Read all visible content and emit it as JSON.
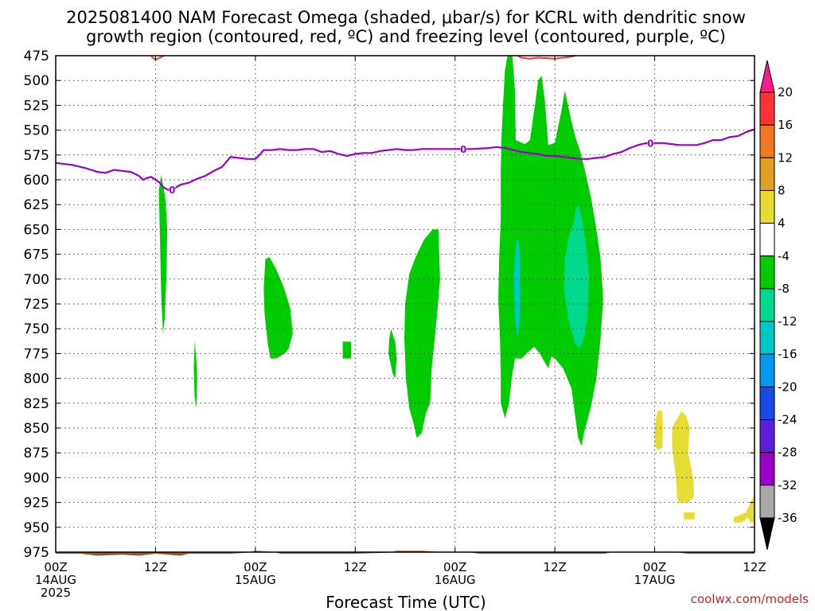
{
  "title_line1": "2025081400 NAM Forecast Omega (shaded, μbar/s) for KCRL with dendritic snow",
  "title_line2": "growth region (contoured, red, ºC) and freezing level (contoured, purple, ºC)",
  "xlabel": "Forecast Time (UTC)",
  "credit": "coolwx.com/models",
  "colors": {
    "green": "#00cc00",
    "teal": "#00d88c",
    "cyan": "#00c8c8",
    "yellow": "#e6dc32",
    "freezing_line": "#9b00c8",
    "dgz_line": "#ff3030",
    "ground": "#a0522d"
  },
  "chart_data": {
    "type": "heatmap",
    "y_axis": {
      "label": "",
      "range": [
        975,
        475
      ],
      "inverted": true,
      "ticks": [
        "475",
        "500",
        "525",
        "550",
        "575",
        "600",
        "625",
        "650",
        "675",
        "700",
        "725",
        "750",
        "775",
        "800",
        "825",
        "850",
        "875",
        "900",
        "925",
        "950",
        "975"
      ]
    },
    "x_axis": {
      "label": "Forecast Time (UTC)",
      "range_hours": [
        0,
        84
      ],
      "ticks": [
        {
          "hour": 0,
          "line1": "00Z",
          "line2": "14AUG",
          "line3": "2025"
        },
        {
          "hour": 12,
          "line1": "12Z",
          "line2": "",
          "line3": ""
        },
        {
          "hour": 24,
          "line1": "00Z",
          "line2": "15AUG",
          "line3": ""
        },
        {
          "hour": 36,
          "line1": "12Z",
          "line2": "",
          "line3": ""
        },
        {
          "hour": 48,
          "line1": "00Z",
          "line2": "16AUG",
          "line3": ""
        },
        {
          "hour": 60,
          "line1": "12Z",
          "line2": "",
          "line3": ""
        },
        {
          "hour": 72,
          "line1": "00Z",
          "line2": "17AUG",
          "line3": ""
        },
        {
          "hour": 84,
          "line1": "12Z",
          "line2": "",
          "line3": ""
        }
      ]
    },
    "grid": true,
    "colorbar": {
      "levels": [
        "20",
        "16",
        "12",
        "8",
        "4",
        "-4",
        "-8",
        "-12",
        "-16",
        "-20",
        "-24",
        "-28",
        "-32",
        "-36"
      ],
      "colors": [
        "#ff1a8c",
        "#ff3333",
        "#f07820",
        "#e0a020",
        "#e6dc32",
        "#ffffff",
        "#00cc00",
        "#00d88c",
        "#00c8c8",
        "#0099ee",
        "#1a4ae6",
        "#5a20d8",
        "#9b00c8",
        "#a8a8a8",
        "#000000"
      ]
    },
    "freezing_level": {
      "label": "0",
      "points": [
        [
          0,
          583
        ],
        [
          2,
          585
        ],
        [
          3.5,
          588
        ],
        [
          5,
          592
        ],
        [
          6,
          593
        ],
        [
          7,
          590
        ],
        [
          8,
          591
        ],
        [
          9,
          592
        ],
        [
          10,
          596
        ],
        [
          10.5,
          600
        ],
        [
          11,
          598
        ],
        [
          11.5,
          597
        ],
        [
          12,
          600
        ],
        [
          12.5,
          603
        ],
        [
          13,
          608
        ],
        [
          13.5,
          610
        ],
        [
          14,
          610
        ],
        [
          15,
          605
        ],
        [
          16,
          603
        ],
        [
          17,
          599
        ],
        [
          18,
          596
        ],
        [
          19,
          591
        ],
        [
          20,
          587
        ],
        [
          21,
          577
        ],
        [
          22,
          578
        ],
        [
          23,
          579
        ],
        [
          24,
          579
        ],
        [
          24.5,
          575
        ],
        [
          25,
          570
        ],
        [
          26,
          570
        ],
        [
          27,
          569
        ],
        [
          28,
          570
        ],
        [
          29,
          570
        ],
        [
          30,
          569
        ],
        [
          31,
          569
        ],
        [
          32,
          572
        ],
        [
          33,
          571
        ],
        [
          34,
          574
        ],
        [
          35,
          576
        ],
        [
          36,
          574
        ],
        [
          37,
          573
        ],
        [
          38,
          573
        ],
        [
          39,
          571
        ],
        [
          40,
          570
        ],
        [
          41,
          569
        ],
        [
          42,
          570
        ],
        [
          43,
          570
        ],
        [
          44,
          569
        ],
        [
          45,
          569
        ],
        [
          46,
          569
        ],
        [
          48,
          569
        ],
        [
          50,
          569
        ],
        [
          52,
          568
        ],
        [
          53,
          567
        ],
        [
          54,
          568
        ],
        [
          55,
          570
        ],
        [
          56,
          572
        ],
        [
          57,
          573
        ],
        [
          58,
          574
        ],
        [
          59,
          576
        ],
        [
          60,
          576
        ],
        [
          61,
          577
        ],
        [
          62,
          578
        ],
        [
          63,
          579
        ],
        [
          64,
          579
        ],
        [
          65,
          578
        ],
        [
          66,
          577
        ],
        [
          67,
          574
        ],
        [
          68,
          572
        ],
        [
          69,
          568
        ],
        [
          70,
          565
        ],
        [
          71,
          563
        ],
        [
          72,
          563
        ],
        [
          73,
          563
        ],
        [
          74,
          564
        ],
        [
          75,
          565
        ],
        [
          76,
          565
        ],
        [
          77,
          565
        ],
        [
          78,
          563
        ],
        [
          79,
          560
        ],
        [
          80,
          560
        ],
        [
          81,
          557
        ],
        [
          82,
          556
        ],
        [
          83,
          552
        ],
        [
          84,
          549
        ]
      ],
      "labels_at_hours": [
        14,
        49,
        71.5
      ]
    },
    "dgz_contours": [
      [
        [
          11.5,
          476
        ],
        [
          12,
          479
        ],
        [
          12.5,
          477
        ],
        [
          13,
          475
        ]
      ],
      [
        [
          55.5,
          475
        ],
        [
          56,
          477
        ],
        [
          57,
          478
        ],
        [
          58,
          477
        ],
        [
          60,
          478
        ],
        [
          61,
          477
        ],
        [
          62,
          476
        ],
        [
          62.5,
          475
        ]
      ]
    ],
    "green_regions": [
      [
        [
          12.7,
          595
        ],
        [
          13.2,
          620
        ],
        [
          13.4,
          650
        ],
        [
          13.3,
          700
        ],
        [
          13.1,
          740
        ],
        [
          12.9,
          755
        ],
        [
          12.7,
          720
        ],
        [
          12.5,
          650
        ],
        [
          12.4,
          610
        ]
      ],
      [
        [
          16.7,
          763
        ],
        [
          16.9,
          780
        ],
        [
          17.0,
          800
        ],
        [
          16.9,
          830
        ],
        [
          16.7,
          820
        ],
        [
          16.6,
          790
        ]
      ],
      [
        [
          25.2,
          680
        ],
        [
          25.7,
          678
        ],
        [
          26.5,
          690
        ],
        [
          27.5,
          710
        ],
        [
          28.2,
          730
        ],
        [
          28.5,
          755
        ],
        [
          28.0,
          770
        ],
        [
          27.5,
          775
        ],
        [
          26.5,
          780
        ],
        [
          25.8,
          780
        ],
        [
          25.5,
          765
        ],
        [
          25.1,
          735
        ],
        [
          25.0,
          710
        ]
      ],
      [
        [
          34.5,
          763
        ],
        [
          35.5,
          763
        ],
        [
          35.5,
          780
        ],
        [
          34.5,
          780
        ]
      ],
      [
        [
          40.3,
          750
        ],
        [
          40.8,
          763
        ],
        [
          41.0,
          780
        ],
        [
          40.8,
          800
        ],
        [
          40.5,
          795
        ],
        [
          40.0,
          775
        ],
        [
          40.1,
          760
        ]
      ],
      [
        [
          45.3,
          650
        ],
        [
          46.0,
          650
        ],
        [
          46.2,
          700
        ],
        [
          45.8,
          740
        ],
        [
          45.2,
          790
        ],
        [
          45.0,
          825
        ],
        [
          44.5,
          835
        ],
        [
          44.0,
          855
        ],
        [
          43.4,
          860
        ],
        [
          43.0,
          845
        ],
        [
          42.5,
          830
        ],
        [
          42.1,
          800
        ],
        [
          41.9,
          760
        ],
        [
          42.0,
          725
        ],
        [
          42.5,
          695
        ],
        [
          43.3,
          677
        ],
        [
          44.3,
          660
        ]
      ],
      [
        [
          54.3,
          475
        ],
        [
          54.9,
          475
        ],
        [
          55.2,
          510
        ],
        [
          55.3,
          560
        ],
        [
          56.4,
          564
        ],
        [
          57.0,
          560
        ],
        [
          57.6,
          525
        ],
        [
          58.0,
          500
        ],
        [
          58.4,
          495
        ],
        [
          58.8,
          520
        ],
        [
          59.2,
          565
        ],
        [
          60.0,
          563
        ],
        [
          60.8,
          530
        ],
        [
          61.2,
          510
        ],
        [
          61.7,
          530
        ],
        [
          62.4,
          555
        ],
        [
          63.0,
          570
        ],
        [
          63.6,
          590
        ],
        [
          64.4,
          620
        ],
        [
          65.0,
          650
        ],
        [
          65.5,
          680
        ],
        [
          65.8,
          720
        ],
        [
          65.5,
          760
        ],
        [
          65.0,
          800
        ],
        [
          64.3,
          830
        ],
        [
          63.5,
          855
        ],
        [
          63.2,
          868
        ],
        [
          62.8,
          860
        ],
        [
          62.4,
          835
        ],
        [
          62.0,
          810
        ],
        [
          61.0,
          790
        ],
        [
          60.0,
          780
        ],
        [
          59.6,
          778
        ],
        [
          59.2,
          790
        ],
        [
          58.2,
          775
        ],
        [
          57.5,
          768
        ],
        [
          56.6,
          775
        ],
        [
          56.0,
          780
        ],
        [
          55.2,
          780
        ],
        [
          54.8,
          800
        ],
        [
          54.5,
          825
        ],
        [
          54.0,
          840
        ],
        [
          53.5,
          825
        ],
        [
          53.5,
          795
        ],
        [
          53.4,
          760
        ],
        [
          53.2,
          720
        ],
        [
          53.3,
          680
        ],
        [
          53.5,
          640
        ],
        [
          53.5,
          590
        ],
        [
          53.6,
          555
        ],
        [
          53.8,
          520
        ],
        [
          54.0,
          490
        ]
      ]
    ],
    "teal_regions": [
      [
        [
          62.8,
          625
        ],
        [
          63.3,
          640
        ],
        [
          63.9,
          675
        ],
        [
          64.1,
          700
        ],
        [
          63.9,
          740
        ],
        [
          63.5,
          760
        ],
        [
          63.0,
          770
        ],
        [
          62.4,
          765
        ],
        [
          61.6,
          740
        ],
        [
          61.1,
          710
        ],
        [
          61.2,
          680
        ],
        [
          61.6,
          660
        ],
        [
          62.2,
          645
        ],
        [
          62.5,
          630
        ]
      ],
      [
        [
          55.6,
          660
        ],
        [
          55.8,
          675
        ],
        [
          55.8,
          700
        ],
        [
          55.8,
          740
        ],
        [
          55.5,
          760
        ],
        [
          55.2,
          740
        ],
        [
          55.1,
          700
        ],
        [
          55.2,
          675
        ],
        [
          55.4,
          660
        ]
      ]
    ],
    "yellow_regions": [
      [
        [
          72.4,
          832
        ],
        [
          72.9,
          833
        ],
        [
          73.0,
          850
        ],
        [
          72.9,
          870
        ],
        [
          72.4,
          872
        ],
        [
          72.0,
          868
        ],
        [
          72.0,
          850
        ],
        [
          72.2,
          838
        ]
      ],
      [
        [
          75.2,
          833
        ],
        [
          75.8,
          838
        ],
        [
          76.2,
          850
        ],
        [
          76.0,
          875
        ],
        [
          76.4,
          890
        ],
        [
          76.7,
          905
        ],
        [
          76.7,
          920
        ],
        [
          76.0,
          925
        ],
        [
          74.9,
          925
        ],
        [
          74.7,
          920
        ],
        [
          74.6,
          905
        ],
        [
          74.4,
          890
        ],
        [
          74.1,
          870
        ],
        [
          74.1,
          850
        ],
        [
          74.5,
          843
        ],
        [
          74.8,
          840
        ]
      ],
      [
        [
          75.5,
          935
        ],
        [
          76.8,
          935
        ],
        [
          76.8,
          942
        ],
        [
          75.5,
          942
        ]
      ],
      [
        [
          81.5,
          940
        ],
        [
          83.0,
          935
        ],
        [
          83.5,
          925
        ],
        [
          84.0,
          918
        ],
        [
          84.0,
          945
        ],
        [
          83.5,
          945
        ],
        [
          83.2,
          940
        ],
        [
          82.5,
          945
        ],
        [
          81.5,
          945
        ]
      ]
    ],
    "ground_surface": [
      [
        0,
        975
      ],
      [
        3,
        975
      ],
      [
        5,
        977
      ],
      [
        8,
        976
      ],
      [
        10,
        977
      ],
      [
        12,
        975
      ],
      [
        15,
        977
      ],
      [
        16,
        975
      ],
      [
        21,
        975
      ],
      [
        23,
        974
      ],
      [
        24,
        972
      ],
      [
        26,
        973
      ],
      [
        27,
        975
      ],
      [
        36,
        975
      ],
      [
        40,
        974
      ],
      [
        41,
        972
      ],
      [
        44,
        972
      ],
      [
        46,
        973
      ],
      [
        48,
        973
      ],
      [
        50,
        974
      ],
      [
        51,
        975
      ],
      [
        60,
        975
      ],
      [
        66,
        975
      ],
      [
        67,
        973
      ],
      [
        70,
        973
      ],
      [
        74,
        973
      ],
      [
        75,
        974
      ],
      [
        76,
        975
      ],
      [
        80,
        975
      ],
      [
        84,
        975
      ]
    ]
  }
}
